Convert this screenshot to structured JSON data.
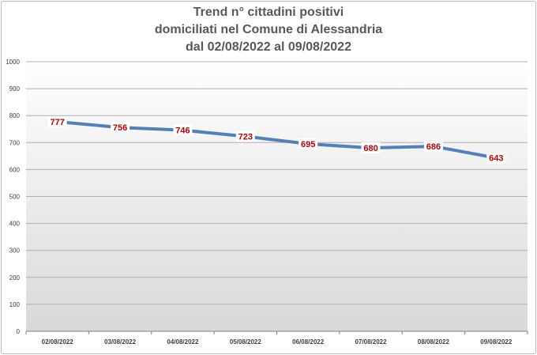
{
  "chart_data": {
    "type": "line",
    "title_lines": [
      "Trend n° cittadini positivi",
      "domiciliati nel Comune di Alessandria",
      "dal 02/08/2022 al 09/08/2022"
    ],
    "categories": [
      "02/08/2022",
      "03/08/2022",
      "04/08/2022",
      "05/08/2022",
      "06/08/2022",
      "07/08/2022",
      "08/08/2022",
      "09/08/2022"
    ],
    "values": [
      777,
      756,
      746,
      723,
      695,
      680,
      686,
      643
    ],
    "ylim": [
      0,
      1000
    ],
    "yticks": [
      "0",
      "100",
      "200",
      "300",
      "400",
      "500",
      "600",
      "700",
      "800",
      "900",
      "1000"
    ],
    "grid": true,
    "line_color": "#4f81bd",
    "label_color": "#c00000",
    "background_gradient": [
      "#ffffff",
      "#d9d9d9"
    ]
  }
}
